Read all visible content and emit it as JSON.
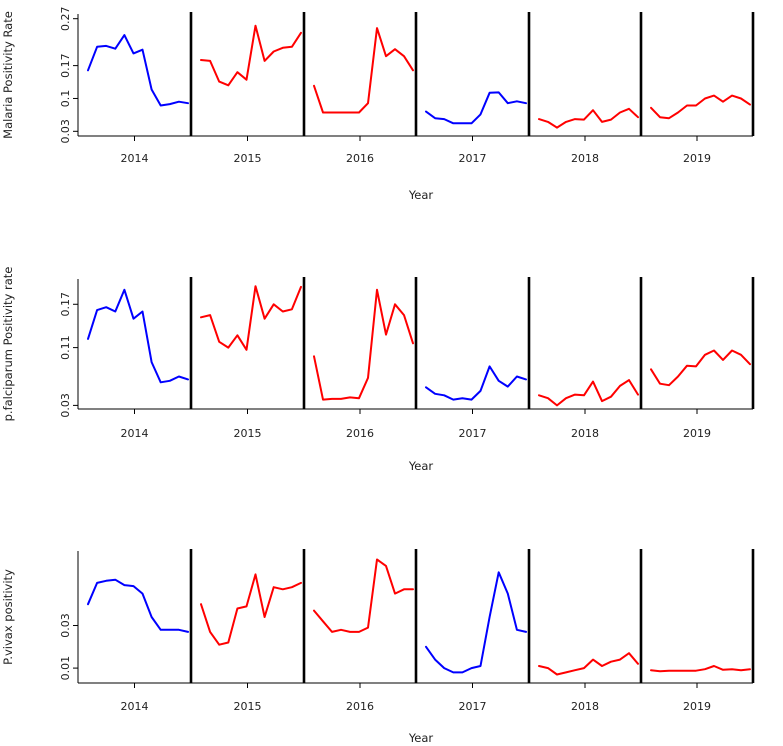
{
  "chart_data": [
    {
      "type": "line",
      "xlabel": "Year",
      "ylabel": "Malaria Positivity Rate",
      "yticks": [
        0.03,
        0.1,
        0.17,
        0.27
      ],
      "ylim": [
        0.02,
        0.28
      ],
      "years": [
        "2014",
        "2015",
        "2016",
        "2017",
        "2018",
        "2019"
      ],
      "series": [
        {
          "year": "2014",
          "color": "#0000ff",
          "values": [
            0.16,
            0.21,
            0.212,
            0.206,
            0.235,
            0.196,
            0.204,
            0.119,
            0.085,
            0.088,
            0.093,
            0.09
          ]
        },
        {
          "year": "2015",
          "color": "#ff0000",
          "values": [
            0.182,
            0.18,
            0.136,
            0.128,
            0.156,
            0.14,
            0.255,
            0.18,
            0.2,
            0.208,
            0.21,
            0.24
          ]
        },
        {
          "year": "2016",
          "color": "#ff0000",
          "values": [
            0.127,
            0.07,
            0.07,
            0.07,
            0.07,
            0.07,
            0.09,
            0.25,
            0.19,
            0.205,
            0.19,
            0.16
          ]
        },
        {
          "year": "2017",
          "color": "#0000ff",
          "values": [
            0.072,
            0.058,
            0.056,
            0.047,
            0.047,
            0.047,
            0.066,
            0.112,
            0.113,
            0.09,
            0.094,
            0.09
          ]
        },
        {
          "year": "2018",
          "color": "#ff0000",
          "values": [
            0.056,
            0.05,
            0.038,
            0.05,
            0.056,
            0.055,
            0.075,
            0.05,
            0.055,
            0.07,
            0.078,
            0.06
          ]
        },
        {
          "year": "2019",
          "color": "#ff0000",
          "values": [
            0.08,
            0.06,
            0.058,
            0.07,
            0.085,
            0.085,
            0.1,
            0.106,
            0.093,
            0.106,
            0.1,
            0.087
          ]
        }
      ]
    },
    {
      "type": "line",
      "xlabel": "Year",
      "ylabel": "p.falciparum Positivity rate",
      "yticks": [
        0.03,
        0.11,
        0.17
      ],
      "ylim": [
        0.025,
        0.205
      ],
      "years": [
        "2014",
        "2015",
        "2016",
        "2017",
        "2018",
        "2019"
      ],
      "series": [
        {
          "year": "2014",
          "color": "#0000ff",
          "values": [
            0.122,
            0.162,
            0.166,
            0.16,
            0.19,
            0.15,
            0.16,
            0.09,
            0.062,
            0.064,
            0.07,
            0.066
          ]
        },
        {
          "year": "2015",
          "color": "#ff0000",
          "values": [
            0.152,
            0.155,
            0.118,
            0.11,
            0.127,
            0.107,
            0.195,
            0.15,
            0.17,
            0.16,
            0.163,
            0.194
          ]
        },
        {
          "year": "2016",
          "color": "#ff0000",
          "values": [
            0.098,
            0.038,
            0.039,
            0.039,
            0.041,
            0.04,
            0.068,
            0.19,
            0.128,
            0.17,
            0.155,
            0.116
          ]
        },
        {
          "year": "2017",
          "color": "#0000ff",
          "values": [
            0.055,
            0.046,
            0.044,
            0.038,
            0.04,
            0.038,
            0.05,
            0.084,
            0.064,
            0.056,
            0.07,
            0.066
          ]
        },
        {
          "year": "2018",
          "color": "#ff0000",
          "values": [
            0.044,
            0.04,
            0.03,
            0.04,
            0.045,
            0.044,
            0.063,
            0.036,
            0.042,
            0.057,
            0.065,
            0.045
          ]
        },
        {
          "year": "2019",
          "color": "#ff0000",
          "values": [
            0.08,
            0.06,
            0.058,
            0.07,
            0.085,
            0.084,
            0.1,
            0.106,
            0.093,
            0.106,
            0.1,
            0.087
          ]
        }
      ]
    },
    {
      "type": "line",
      "xlabel": "Year",
      "ylabel": "P.vivax positivity",
      "yticks": [
        0.01,
        0.03
      ],
      "ylim": [
        0.003,
        0.065
      ],
      "years": [
        "2014",
        "2015",
        "2016",
        "2017",
        "2018",
        "2019"
      ],
      "series": [
        {
          "year": "2014",
          "color": "#0000ff",
          "values": [
            0.04,
            0.05,
            0.051,
            0.0515,
            0.049,
            0.0485,
            0.045,
            0.034,
            0.028,
            0.028,
            0.028,
            0.027
          ]
        },
        {
          "year": "2015",
          "color": "#ff0000",
          "values": [
            0.04,
            0.027,
            0.021,
            0.022,
            0.038,
            0.039,
            0.054,
            0.034,
            0.048,
            0.047,
            0.048,
            0.05
          ]
        },
        {
          "year": "2016",
          "color": "#ff0000",
          "values": [
            0.037,
            0.032,
            0.027,
            0.028,
            0.027,
            0.027,
            0.029,
            0.061,
            0.058,
            0.045,
            0.047,
            0.047
          ]
        },
        {
          "year": "2017",
          "color": "#0000ff",
          "values": [
            0.02,
            0.014,
            0.01,
            0.008,
            0.008,
            0.01,
            0.011,
            0.034,
            0.055,
            0.045,
            0.028,
            0.027
          ]
        },
        {
          "year": "2018",
          "color": "#ff0000",
          "values": [
            0.011,
            0.01,
            0.007,
            0.008,
            0.009,
            0.01,
            0.014,
            0.011,
            0.013,
            0.014,
            0.017,
            0.012
          ]
        },
        {
          "year": "2019",
          "color": "#ff0000",
          "values": [
            0.009,
            0.0085,
            0.0088,
            0.0088,
            0.0088,
            0.0088,
            0.0095,
            0.011,
            0.0092,
            0.0095,
            0.009,
            0.0095
          ]
        }
      ]
    }
  ]
}
